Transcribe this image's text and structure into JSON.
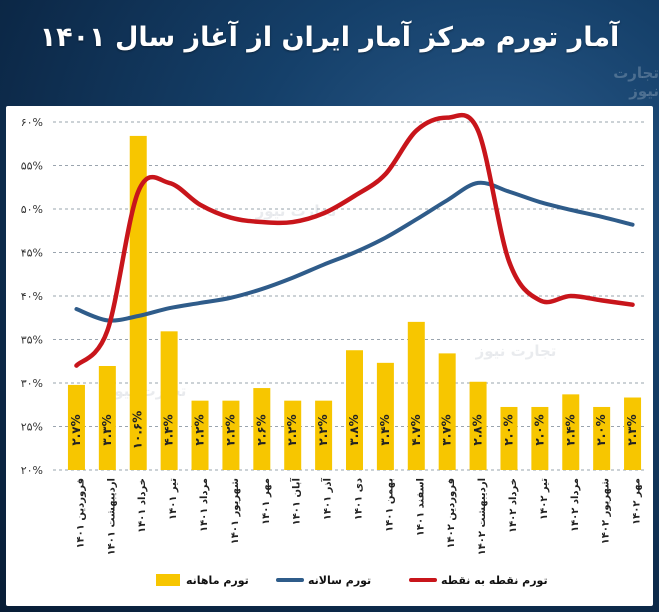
{
  "header": {
    "title": "آمار تورم مرکز آمار ایران از آغاز سال ۱۴۰۱"
  },
  "watermark": "تجارت نیوز",
  "colors": {
    "bar": "#f7c600",
    "annual_line": "#2f5c8a",
    "p2p_line": "#c8151b",
    "grid": "#9aa4ae"
  },
  "chart_data": {
    "type": "bar+line",
    "title": "آمار تورم مرکز آمار ایران از آغاز سال ۱۴۰۱",
    "categories": [
      "فروردین ۱۴۰۱",
      "اردیبهشت ۱۴۰۱",
      "خرداد ۱۴۰۱",
      "تیر ۱۴۰۱",
      "مرداد ۱۴۰۱",
      "شهریور ۱۴۰۱",
      "مهر ۱۴۰۱",
      "آبان ۱۴۰۱",
      "آذر ۱۴۰۱",
      "دی ۱۴۰۱",
      "بهمن ۱۴۰۱",
      "اسفند ۱۴۰۱",
      "فروردین ۱۴۰۲",
      "اردیبهشت ۱۴۰۲",
      "خرداد ۱۴۰۲",
      "تیر ۱۴۰۲",
      "مرداد ۱۴۰۲",
      "شهریور ۱۴۰۲",
      "مهر ۱۴۰۲"
    ],
    "yticks": [
      "۲۰%",
      "۲۵%",
      "۳۰%",
      "۳۵%",
      "۴۰%",
      "۴۵%",
      "۵۰%",
      "۵۵%",
      "۶۰%"
    ],
    "ylim": [
      20,
      60
    ],
    "grid": true,
    "legend_position": "bottom",
    "series": [
      {
        "name": "تورم ماهانه",
        "kind": "bar",
        "values": [
          2.7,
          3.3,
          10.6,
          4.4,
          2.2,
          2.2,
          2.6,
          2.2,
          2.2,
          3.8,
          3.4,
          4.7,
          3.7,
          2.8,
          2.0,
          2.0,
          2.4,
          2.0,
          2.3
        ],
        "labels": [
          "۲.۷%",
          "۳.۳%",
          "۱۰.۶%",
          "۴.۴%",
          "۲.۲%",
          "۲.۲%",
          "۲.۶%",
          "۲.۲%",
          "۲.۲%",
          "۳.۸%",
          "۳.۴%",
          "۴.۷%",
          "۳.۷%",
          "۲.۸%",
          "۲.۰%",
          "۲.۰%",
          "۲.۴%",
          "۲.۰%",
          "۲.۳%"
        ]
      },
      {
        "name": "تورم سالانه",
        "kind": "line",
        "values": [
          38.5,
          37.2,
          37.7,
          38.6,
          39.2,
          39.8,
          40.8,
          42.1,
          43.6,
          45.0,
          46.7,
          48.8,
          51.0,
          53.0,
          52.0,
          50.8,
          49.9,
          49.1,
          48.2
        ]
      },
      {
        "name": "تورم نقطه به نقطه",
        "kind": "line",
        "values": [
          32.0,
          36.0,
          52.0,
          53.0,
          50.5,
          49.0,
          48.5,
          48.5,
          49.5,
          51.5,
          54.0,
          59.0,
          60.5,
          59.0,
          44.0,
          39.5,
          40.0,
          39.5,
          39.0
        ]
      }
    ]
  }
}
